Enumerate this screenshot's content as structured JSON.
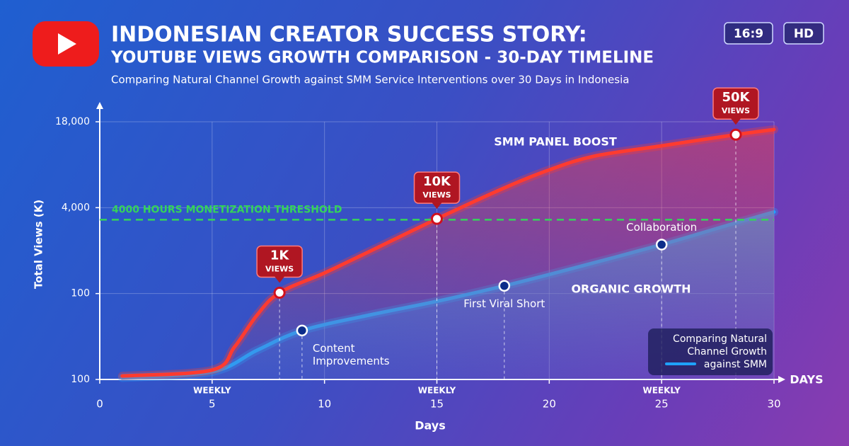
{
  "chart_data": {
    "type": "line",
    "title": "INDONESIAN CREATOR SUCCESS STORY:",
    "title_line2": "YOUTUBE VIEWS GROWTH COMPARISON - 30-DAY TIMELINE",
    "subtitle": "Comparing Natural Channel Growth against SMM Service Interventions over 30 Days in Indonesia",
    "badges": [
      "16:9",
      "HD"
    ],
    "x_label": "Days",
    "x_end_label": "DAYS",
    "y_label": "Total Views (K)",
    "xlim": [
      0,
      30
    ],
    "xticks": [
      0,
      5,
      10,
      15,
      20,
      25,
      30
    ],
    "ylim": [
      0,
      3
    ],
    "yticks": [
      0,
      1,
      2,
      3
    ],
    "ytick_labels": [
      "100",
      "100",
      "4,000",
      "18,000"
    ],
    "grid": true,
    "series": [
      {
        "name": "SMM PANEL BOOST",
        "color": "#ff3b2f",
        "x": [
          1,
          5,
          6,
          7,
          8,
          10,
          12,
          15,
          18,
          20,
          22,
          25,
          28.3,
          30
        ],
        "values": [
          0.04,
          0.11,
          0.38,
          0.75,
          1.01,
          1.24,
          1.49,
          1.87,
          2.23,
          2.44,
          2.6,
          2.72,
          2.85,
          2.91
        ]
      },
      {
        "name": "ORGANIC GROWTH",
        "color": "#1fa2ff",
        "x": [
          1,
          5,
          7,
          9,
          12,
          15,
          18,
          21,
          25,
          28,
          30
        ],
        "values": [
          0.02,
          0.09,
          0.34,
          0.57,
          0.75,
          0.91,
          1.09,
          1.29,
          1.57,
          1.8,
          1.95
        ]
      }
    ],
    "threshold": {
      "label": "4000 HOURS MONETIZATION THRESHOLD",
      "y": 1.86,
      "color": "#35d35a"
    },
    "callouts": [
      {
        "label": "1K",
        "sublabel": "VIEWS",
        "x": 8,
        "y": 1.01
      },
      {
        "label": "10K",
        "sublabel": "VIEWS",
        "x": 15,
        "y": 1.87
      },
      {
        "label": "50K",
        "sublabel": "VIEWS",
        "x": 28.3,
        "y": 2.85
      }
    ],
    "milestones": [
      {
        "label": "Content Improvements",
        "x": 9,
        "y": 0.57
      },
      {
        "label": "First Viral Short",
        "x": 18,
        "y": 1.09
      },
      {
        "label": "Collaboration",
        "x": 25,
        "y": 1.57
      }
    ],
    "week_labels": [
      {
        "label": "WEEKLY",
        "x": 5
      },
      {
        "label": "WEEKLY",
        "x": 15
      },
      {
        "label": "WEEKLY",
        "x": 25
      }
    ],
    "legend_text": "Comparing Natural Channel Growth against SMM"
  }
}
